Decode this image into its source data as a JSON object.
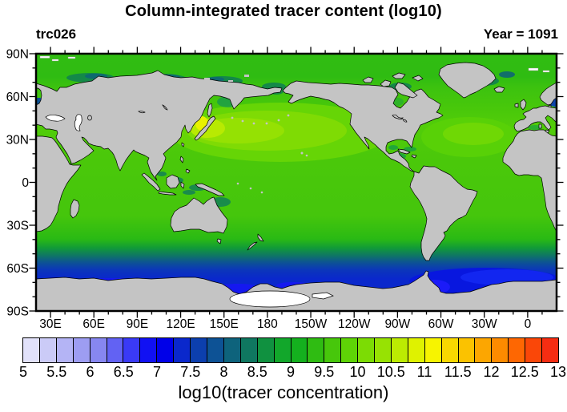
{
  "header": {
    "title": "Column-integrated tracer content (log10)",
    "left_label": "trc026",
    "right_label": "Year = 1091"
  },
  "colorbar": {
    "title": "log10(tracer concentration)"
  },
  "chart_data": {
    "type": "heatmap",
    "subtype": "filled-contour world map, cylindrical equidistant projection, Pacific-centered (left/right edge at 20E)",
    "title": "Column-integrated tracer content (log10)",
    "annotations": {
      "top_left": "trc026",
      "top_right": "Year = 1091"
    },
    "colorbar": {
      "label": "log10(tracer concentration)",
      "min": 5,
      "max": 13,
      "box_step": 0.25,
      "tick_labels": [
        "5",
        "5.5",
        "6",
        "6.5",
        "7",
        "7.5",
        "8",
        "8.5",
        "9",
        "9.5",
        "10",
        "10.5",
        "11",
        "11.5",
        "12",
        "12.5",
        "13"
      ],
      "colors": [
        "#E2E2FA",
        "#CBCBF7",
        "#B4B4F5",
        "#9D9DF2",
        "#8787F0",
        "#6262F3",
        "#3A3AF6",
        "#1111F3",
        "#0000E8",
        "#0A28CC",
        "#0C3FAE",
        "#0D5295",
        "#0E637C",
        "#0F7760",
        "#109140",
        "#12A72B",
        "#14B01E",
        "#2FBC12",
        "#47C70B",
        "#5ED406",
        "#7CDC04",
        "#97E203",
        "#BCEB02",
        "#DFF200",
        "#F7F400",
        "#F8D800",
        "#FBC200",
        "#FCA601",
        "#FD8B00",
        "#FE6702",
        "#FA4708",
        "#F52D12"
      ]
    },
    "lat_ticks": [
      {
        "deg": 90,
        "label": "90N"
      },
      {
        "deg": 60,
        "label": "60N"
      },
      {
        "deg": 30,
        "label": "30N"
      },
      {
        "deg": 0,
        "label": "0"
      },
      {
        "deg": -30,
        "label": "30S"
      },
      {
        "deg": -60,
        "label": "60S"
      },
      {
        "deg": -90,
        "label": "90S"
      }
    ],
    "lon_ticks": [
      {
        "deg": 30,
        "label": "30E"
      },
      {
        "deg": 60,
        "label": "60E"
      },
      {
        "deg": 90,
        "label": "90E"
      },
      {
        "deg": 120,
        "label": "120E"
      },
      {
        "deg": 150,
        "label": "150E"
      },
      {
        "deg": 180,
        "label": "180"
      },
      {
        "deg": 210,
        "label": "150W"
      },
      {
        "deg": 240,
        "label": "120W"
      },
      {
        "deg": 270,
        "label": "90W"
      },
      {
        "deg": 300,
        "label": "60W"
      },
      {
        "deg": 330,
        "label": "30W"
      },
      {
        "deg": 360,
        "label": "0"
      }
    ],
    "minor_tick_deg": 10,
    "land_color": "#C4C4C4",
    "approx_field_log10": {
      "arctic_ocean": 9.3,
      "arctic_shelf_teal_patches": 8.0,
      "north_pacific_35N": 10.3,
      "sea_of_japan_max": 11.0,
      "bering_sea": 9.8,
      "tropics": 9.5,
      "north_atlantic_30N": 10.0,
      "indian_ocean": 9.5,
      "southern_midlat_45S": 8.75,
      "southern_ocean_55S": 7.5,
      "antarctic_coastal_band": 6.25,
      "weddell_sea_min": 6.0,
      "ross_coast_bright_blue": 6.75
    },
    "no_data_white_regions": [
      "Black Sea",
      "Caspian Sea",
      "Ross Ice Shelf",
      "Arctic ice specks near 80N"
    ]
  }
}
